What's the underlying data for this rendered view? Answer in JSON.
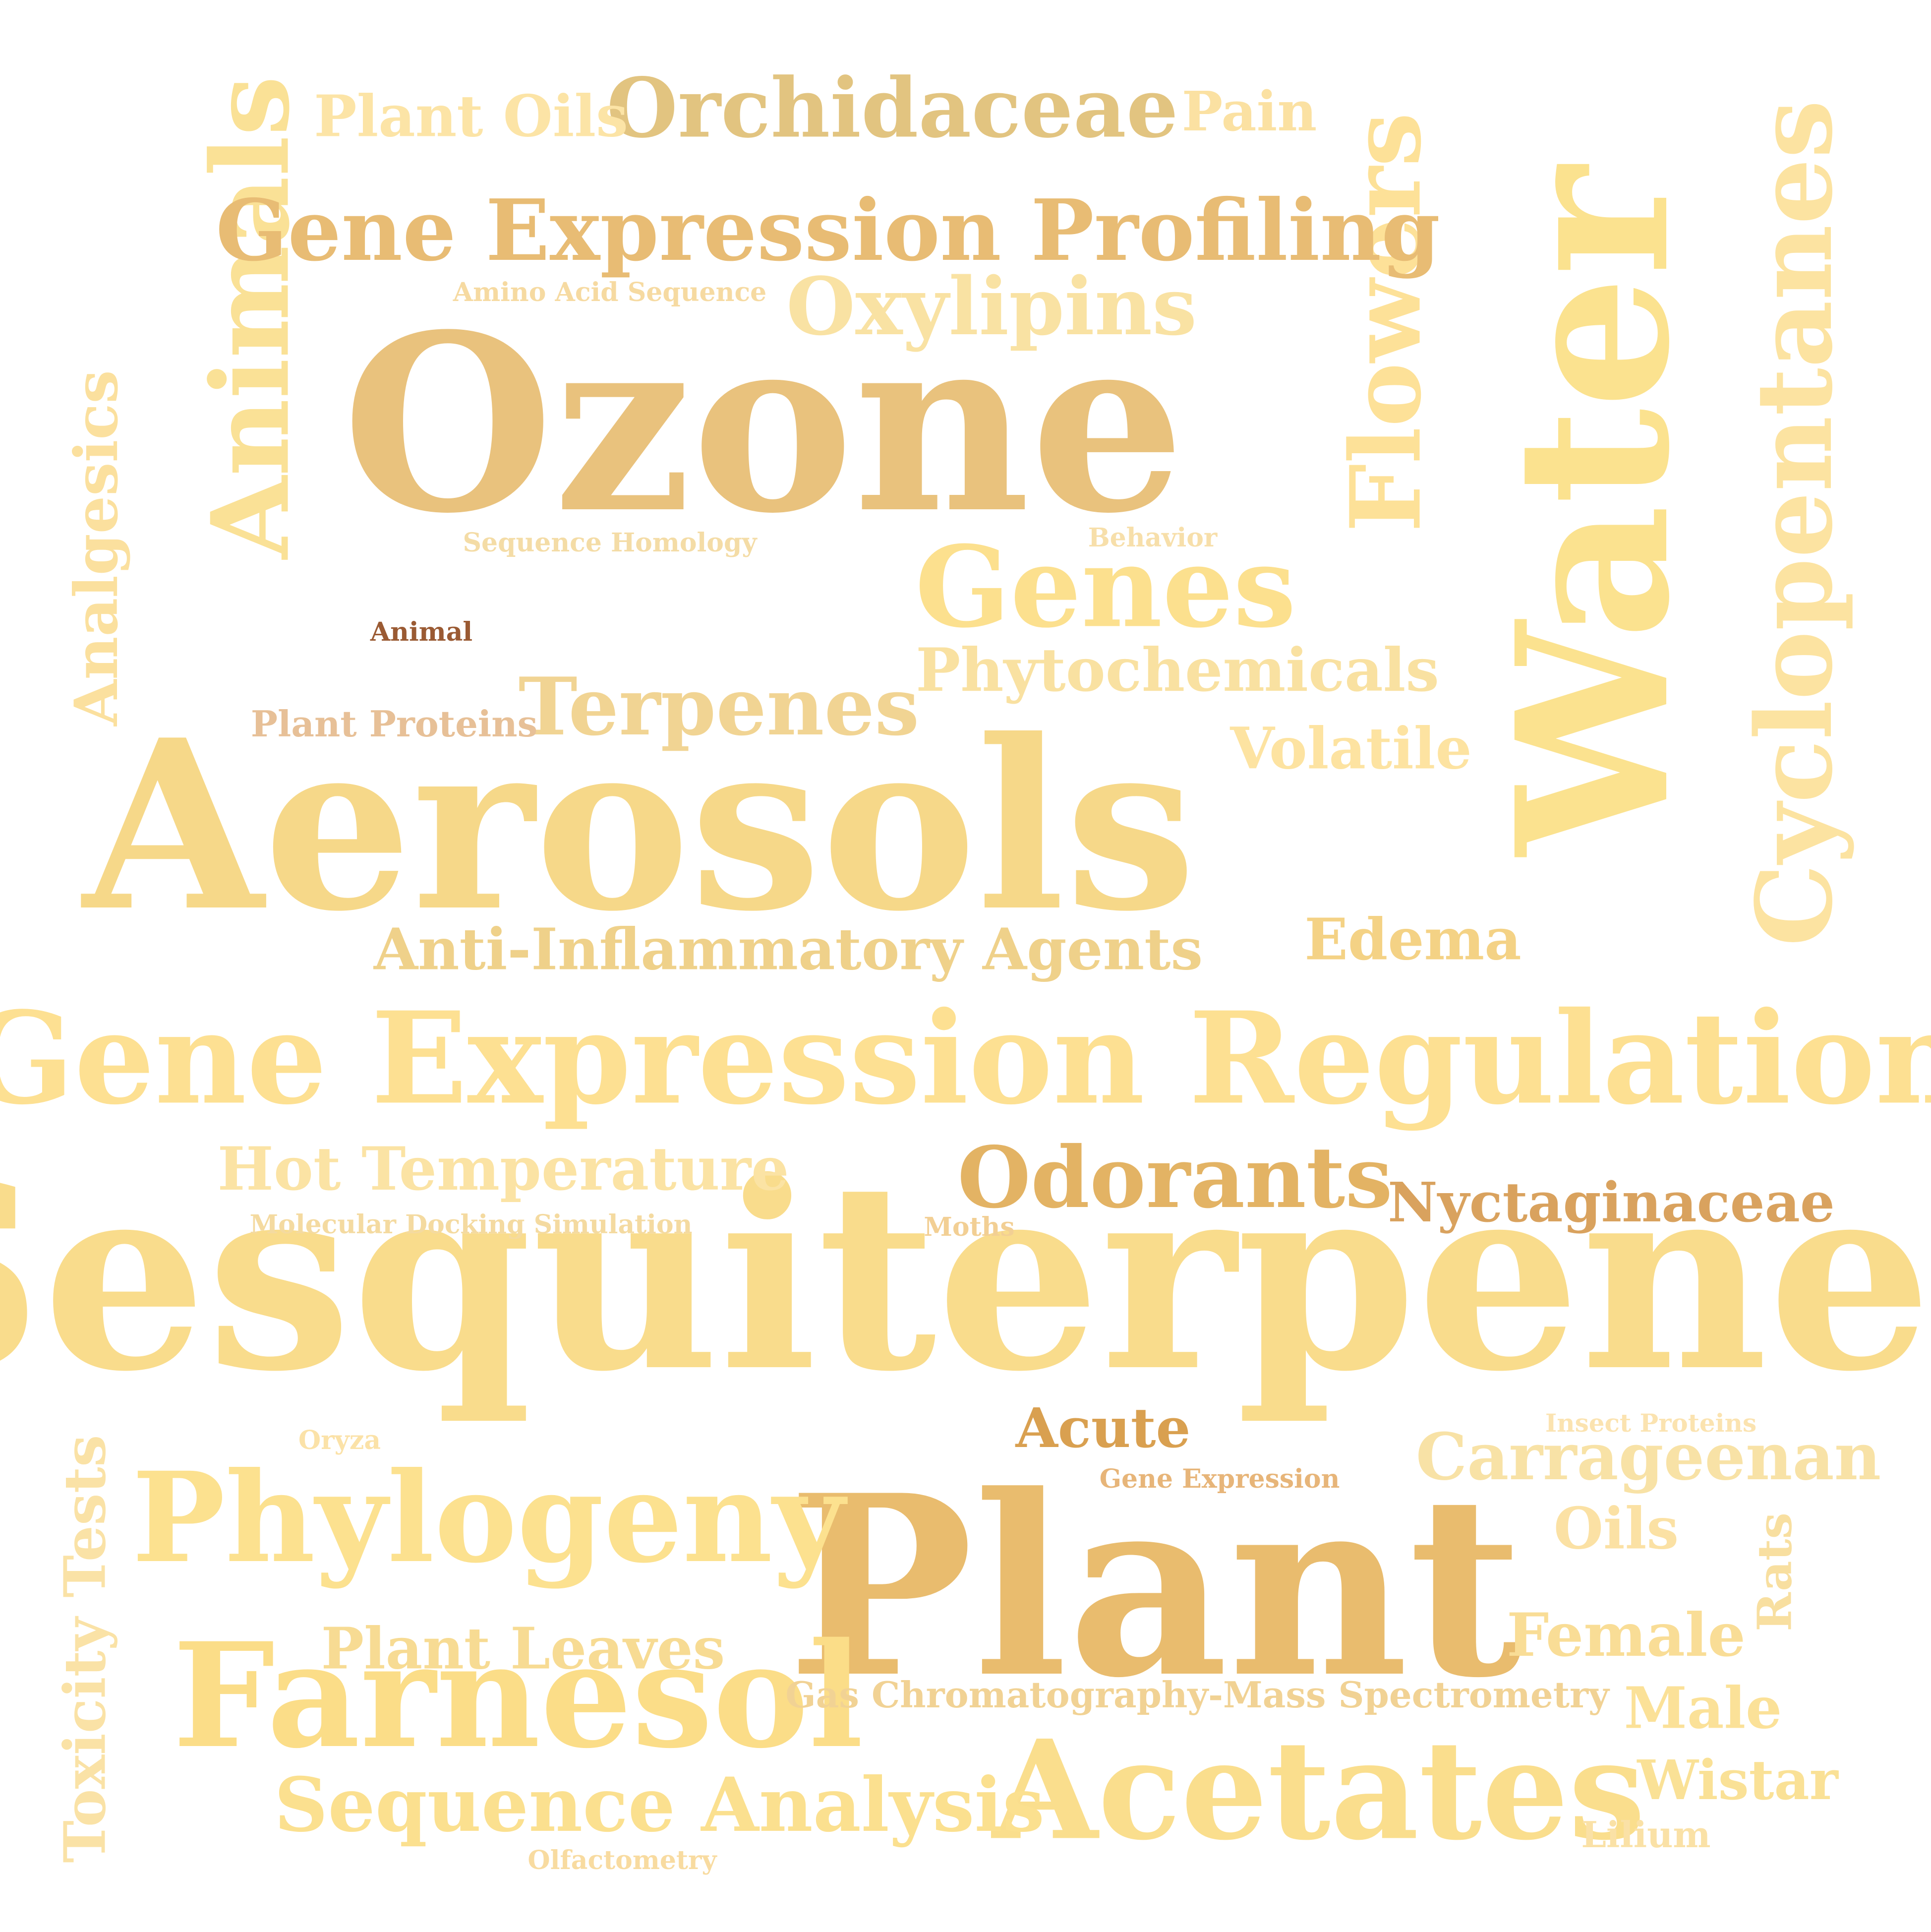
{
  "words": [
    {
      "text": "Sesquiterpenes",
      "color": "#F9DC8C"
    },
    {
      "text": "Plant",
      "color": "#E9BC6E"
    },
    {
      "text": "Aerosols",
      "color": "#F6D889"
    },
    {
      "text": "Ozone",
      "color": "#E9C27D"
    },
    {
      "text": "Water",
      "color": "#FBE28F"
    },
    {
      "text": "Gene Expression Regulation",
      "color": "#FDE092"
    },
    {
      "text": "Acetates",
      "color": "#FADE8D"
    },
    {
      "text": "Farnesol",
      "color": "#FBDD88"
    },
    {
      "text": "Phylogeny",
      "color": "#FCE18F"
    },
    {
      "text": "Cyclopentanes",
      "color": "#FCE3A1"
    },
    {
      "text": "Animals",
      "color": "#FAE196"
    },
    {
      "text": "Flowers",
      "color": "#FDE198"
    },
    {
      "text": "Genes",
      "color": "#FCE08E"
    },
    {
      "text": "Gene Expression Profiling",
      "color": "#E8BC74"
    },
    {
      "text": "Orchidaceae",
      "color": "#E2C480"
    },
    {
      "text": "Odorants",
      "color": "#E3B364"
    },
    {
      "text": "Terpenes",
      "color": "#F1D493"
    },
    {
      "text": "Anti-Inflammatory Agents",
      "color": "#EFD18A"
    },
    {
      "text": "Oxylipins",
      "color": "#F9E2A3"
    },
    {
      "text": "Phytochemicals",
      "color": "#F9E1A1"
    },
    {
      "text": "Hot Temperature",
      "color": "#FBE3A4"
    },
    {
      "text": "Sequence Analysis",
      "color": "#FBE08F"
    },
    {
      "text": "Plant Leaves",
      "color": "#F7DB93"
    },
    {
      "text": "Carrageenan",
      "color": "#F8E2A6"
    },
    {
      "text": "Nyctaginaceae",
      "color": "#D9A25E"
    },
    {
      "text": "Analgesics",
      "color": "#FBE09E"
    },
    {
      "text": "Toxicity Tests",
      "color": "#FAE2A6"
    },
    {
      "text": "Plant Oils",
      "color": "#FCE4A6"
    },
    {
      "text": "Volatile",
      "color": "#FDE3A1"
    },
    {
      "text": "Edema",
      "color": "#F4D285"
    },
    {
      "text": "Pain",
      "color": "#FBE1A2"
    },
    {
      "text": "Female",
      "color": "#F9DD96"
    },
    {
      "text": "Male",
      "color": "#FBE198"
    },
    {
      "text": "Wistar",
      "color": "#FAE196"
    },
    {
      "text": "Oils",
      "color": "#FBE1A4"
    },
    {
      "text": "Rats",
      "color": "#F8DFA0"
    },
    {
      "text": "Acute",
      "color": "#D9A050"
    },
    {
      "text": "Gas Chromatography-Mass Spectrometry",
      "color": "#F1D294"
    },
    {
      "text": "Plant Proteins",
      "color": "#E7C097"
    },
    {
      "text": "Amino Acid Sequence",
      "color": "#F6DAA1"
    },
    {
      "text": "Sequence Homology",
      "color": "#F4DCA6"
    },
    {
      "text": "Behavior",
      "color": "#F7DFAA"
    },
    {
      "text": "Animal",
      "color": "#9A5A33"
    },
    {
      "text": "Molecular Docking Simulation",
      "color": "#F4DAA0"
    },
    {
      "text": "Moths",
      "color": "#F2CF94"
    },
    {
      "text": "Insect Proteins",
      "color": "#FBE3B0"
    },
    {
      "text": "Gene Expression",
      "color": "#E7B579"
    },
    {
      "text": "Oryza",
      "color": "#FBE2A8"
    },
    {
      "text": "Lilium",
      "color": "#FAE1A6"
    },
    {
      "text": "Olfactometry",
      "color": "#F8DBA0"
    }
  ]
}
